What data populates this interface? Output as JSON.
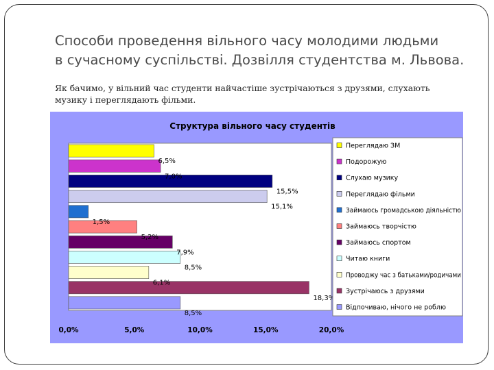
{
  "slide": {
    "title_lines": [
      "Способи проведення вільного часу молодими людьми",
      "в сучасному суспільстві. Дозвілля студентства м. Львова."
    ],
    "subtitle_lines": [
      "Як бачимо, у вільний час студенти найчастіше зустрічаються з друзями, слухають",
      "музику і переглядають фільми."
    ]
  },
  "colors": {
    "chart_background": "#9999ff",
    "plot_background": "#ffffff",
    "legend_background": "#ffffff"
  },
  "chart_data": {
    "type": "bar",
    "orientation": "horizontal",
    "title": "Структура вільного часу студентів",
    "xlabel": "",
    "ylabel": "",
    "xlim": [
      0,
      20
    ],
    "x_ticks": [
      "0,0%",
      "5,0%",
      "10,0%",
      "15,0%",
      "20,0%"
    ],
    "grid": false,
    "legend_position": "right",
    "series": [
      {
        "name": "Переглядаю ЗМ",
        "value": 6.5,
        "label": "6,5%",
        "color": "#ffff00"
      },
      {
        "name": "Подорожую",
        "value": 7.0,
        "label": "7,0%",
        "color": "#cc33cc"
      },
      {
        "name": "Слухаю музику",
        "value": 15.5,
        "label": "15,5%",
        "color": "#000080"
      },
      {
        "name": "Переглядаю фільми",
        "value": 15.1,
        "label": "15,1%",
        "color": "#ccccee"
      },
      {
        "name": "Займаюсь громадською діяльністю",
        "value": 1.5,
        "label": "1,5%",
        "color": "#1f6fd0"
      },
      {
        "name": "Займаюсь творчістю",
        "value": 5.2,
        "label": "5,2%",
        "color": "#ff8080"
      },
      {
        "name": "Займаюсь спортом",
        "value": 7.9,
        "label": "7,9%",
        "color": "#660066"
      },
      {
        "name": "Читаю книги",
        "value": 8.5,
        "label": "8,5%",
        "color": "#ccffff"
      },
      {
        "name": "Проводжу час з батьками/родичами",
        "value": 6.1,
        "label": "6,1%",
        "color": "#ffffcc"
      },
      {
        "name": "Зустрічаюсь з друзями",
        "value": 18.3,
        "label": "18,3%",
        "color": "#993366"
      },
      {
        "name": "Відпочиваю, нічого не роблю",
        "value": 8.5,
        "label": "8,5%",
        "color": "#9999ff"
      }
    ]
  }
}
